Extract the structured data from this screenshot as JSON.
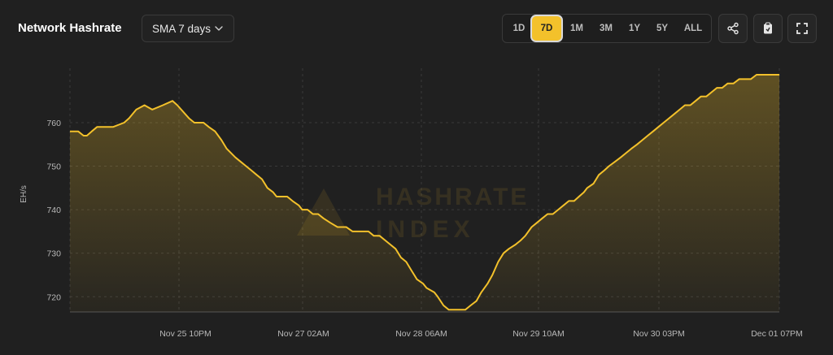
{
  "header": {
    "title": "Network Hashrate",
    "sma_select": "SMA 7 days",
    "ranges": [
      "1D",
      "7D",
      "1M",
      "3M",
      "1Y",
      "5Y",
      "ALL"
    ],
    "active_range": "7D",
    "icons": [
      "share-icon",
      "clipboard-icon",
      "fullscreen-icon"
    ]
  },
  "colors": {
    "background": "#202020",
    "line": "#f3c12b",
    "active": "#f3c12b"
  },
  "watermark": {
    "line1": "HASHRATE",
    "line2": "INDEX"
  },
  "chart_data": {
    "type": "area",
    "ylabel": "EH/s",
    "ylim": [
      716.5,
      772.5
    ],
    "yticks": [
      720,
      730,
      740,
      750,
      760
    ],
    "xticks": [
      "Nov 25 10PM",
      "Nov 27 02AM",
      "Nov 28 06AM",
      "Nov 29 10AM",
      "Nov 30 03PM",
      "Dec 01 07PM"
    ],
    "grid": true,
    "x": [
      0,
      1.7,
      2.8,
      3.5,
      4.5,
      5.6,
      6.7,
      7.8,
      8.9,
      11.2,
      12.2,
      13.7,
      15.4,
      17.0,
      19.2,
      21.2,
      22.2,
      24.6,
      25.7,
      27.6,
      28.7,
      30.0,
      31.3,
      32.4,
      34.2,
      35.3,
      36.4,
      37.5,
      38.6,
      39.7,
      40.8,
      42.0,
      42.7,
      44.9,
      46.0,
      47.3,
      48.0,
      49.1,
      50.2,
      51.3,
      52.4,
      53.8,
      55.3,
      57.1,
      58.4,
      59.7,
      60.8,
      61.7,
      62.8,
      64.0,
      65.1,
      66.2,
      67.3,
      68.4,
      69.5,
      70.6,
      71.7,
      73.0,
      73.7,
      75.3,
      76.0,
      77.2,
      78.3,
      79.4,
      80.6,
      81.7,
      82.8,
      84.0,
      85.0,
      86.3,
      87.3,
      88.5,
      89.6,
      90.7,
      92.1,
      93.2,
      94.1,
      95.4,
      96.5,
      97.6,
      98.7,
      99.8,
      100.9,
      102.0,
      103.1,
      104.2,
      105.2,
      106.2,
      106.9,
      108.2,
      109.3,
      110.4,
      111.4,
      112.6,
      113.8,
      114.9,
      116.0,
      117.2,
      118.3,
      119.4,
      120.5,
      121.6,
      122.7,
      123.8,
      124.9,
      126.0,
      127.1,
      128.2,
      129.3,
      130.4,
      131.5,
      132.6,
      133.7,
      134.8,
      135.9,
      137.1,
      138.3,
      139.5,
      140.7,
      141.9,
      143.1,
      144.3,
      145.5,
      146.6
    ],
    "values": [
      758,
      758,
      757,
      757,
      758,
      759,
      759,
      759,
      759,
      760,
      761,
      763,
      764,
      763,
      764,
      765,
      764,
      761,
      760,
      760,
      759,
      758,
      756,
      754,
      752,
      751,
      750,
      749,
      748,
      747,
      745,
      744,
      743,
      743,
      742,
      741,
      740,
      740,
      739,
      739,
      738,
      737,
      736,
      736,
      735,
      735,
      735,
      735,
      734,
      734,
      733,
      732,
      731,
      729,
      728,
      726,
      724,
      723,
      722,
      721,
      720,
      718,
      717,
      717,
      717,
      717,
      718,
      719,
      721,
      723,
      725,
      728,
      730,
      731,
      732,
      733,
      734,
      736,
      737,
      738,
      739,
      739,
      740,
      741,
      742,
      742,
      743,
      744,
      745,
      746,
      748,
      749,
      750,
      751,
      752,
      753,
      754,
      755,
      756,
      757,
      758,
      759,
      760,
      761,
      762,
      763,
      764,
      764,
      765,
      766,
      766,
      767,
      768,
      768,
      769,
      769,
      770,
      770,
      770,
      771,
      771,
      771,
      771,
      771
    ],
    "x_tick_positions": [
      20,
      44,
      68,
      92,
      116,
      140
    ]
  }
}
